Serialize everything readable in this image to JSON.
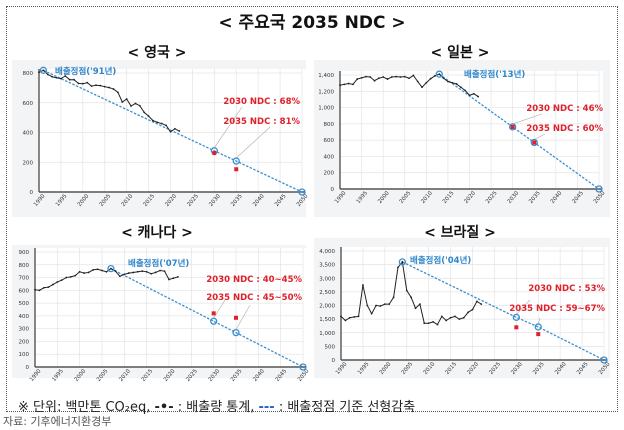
{
  "title": "< 주요국 2035 NDC >",
  "legend": {
    "prefix": "※ 단위: 백만톤 CO₂eq,",
    "stat_marker": "-•-",
    "stat_label": ": 배출량 통계,",
    "linear_marker": "---",
    "linear_label": ": 배출정점 기준 선형감축"
  },
  "source": "자료: 기후에너지환경부",
  "colors": {
    "stats_line": "#222222",
    "linear_line": "#3b8fd0",
    "ndc_marker": "#e0202a",
    "ndc_text": "#e0202a",
    "peak_text": "#2f86c9"
  },
  "chart_data": [
    {
      "type": "line",
      "title": "< 영국 >",
      "x_ticks": [
        1990,
        1995,
        2000,
        2005,
        2010,
        2015,
        2020,
        2025,
        2030,
        2035,
        2040,
        2045,
        2050
      ],
      "y_ticks": [
        "0",
        "200",
        "400",
        "600",
        "800"
      ],
      "ylim": [
        0,
        800
      ],
      "xlim": [
        1990,
        2050
      ],
      "grid": true,
      "emissions": {
        "x": [
          1990,
          1991,
          1992,
          1993,
          1994,
          1995,
          1996,
          1997,
          1998,
          1999,
          2000,
          2001,
          2002,
          2003,
          2004,
          2005,
          2006,
          2007,
          2008,
          2009,
          2010,
          2011,
          2012,
          2013,
          2014,
          2015,
          2016,
          2017,
          2018,
          2019,
          2020,
          2021,
          2022
        ],
        "y": [
          805,
          818,
          790,
          775,
          768,
          762,
          780,
          755,
          755,
          730,
          728,
          735,
          712,
          718,
          715,
          708,
          702,
          692,
          670,
          605,
          625,
          578,
          595,
          580,
          535,
          510,
          480,
          468,
          460,
          448,
          405,
          425,
          410
        ]
      },
      "linear_path": {
        "x": [
          1991,
          2030,
          2035,
          2050
        ],
        "y": [
          818,
          277,
          208,
          0
        ]
      },
      "ndc_points": {
        "x": [
          2030,
          2035
        ],
        "y": [
          262,
          153
        ]
      },
      "peak_label": "배출정점('91년)",
      "ndc_labels": [
        "2030 NDC : 68%",
        "2035 NDC : 81%"
      ]
    },
    {
      "type": "line",
      "title": "< 일본 >",
      "x_ticks": [
        1990,
        1995,
        2000,
        2005,
        2010,
        2015,
        2020,
        2025,
        2030,
        2035,
        2040,
        2045,
        2050
      ],
      "y_ticks": [
        "0",
        "200",
        "400",
        "600",
        "800",
        "1,000",
        "1,200",
        "1,400"
      ],
      "ylim": [
        0,
        1400
      ],
      "xlim": [
        1990,
        2050
      ],
      "grid": true,
      "emissions": {
        "x": [
          1990,
          1991,
          1992,
          1993,
          1994,
          1995,
          1996,
          1997,
          1998,
          1999,
          2000,
          2001,
          2002,
          2003,
          2004,
          2005,
          2006,
          2007,
          2008,
          2009,
          2010,
          2011,
          2012,
          2013,
          2014,
          2015,
          2016,
          2017,
          2018,
          2019,
          2020,
          2021,
          2022
        ],
        "y": [
          1275,
          1285,
          1295,
          1285,
          1350,
          1365,
          1380,
          1375,
          1330,
          1360,
          1375,
          1350,
          1375,
          1380,
          1375,
          1380,
          1360,
          1395,
          1320,
          1250,
          1305,
          1355,
          1390,
          1410,
          1360,
          1320,
          1305,
          1290,
          1250,
          1210,
          1150,
          1170,
          1135
        ]
      },
      "linear_path": {
        "x": [
          2013,
          2030,
          2035,
          2050
        ],
        "y": [
          1410,
          762,
          571,
          0
        ]
      },
      "ndc_points": {
        "x": [
          2030,
          2035
        ],
        "y": [
          762,
          571
        ]
      },
      "peak_label": "배출정점('13년)",
      "ndc_labels": [
        "2030 NDC : 46%",
        "2035 NDC : 60%"
      ]
    },
    {
      "type": "line",
      "title": "< 캐나다 >",
      "x_ticks": [
        1990,
        1995,
        2000,
        2005,
        2010,
        2015,
        2020,
        2025,
        2030,
        2035,
        2040,
        2045,
        2050
      ],
      "y_ticks": [
        "0",
        "100",
        "200",
        "300",
        "400",
        "500",
        "600",
        "700",
        "800",
        "900"
      ],
      "ylim": [
        0,
        900
      ],
      "xlim": [
        1990,
        2050
      ],
      "grid": true,
      "emissions": {
        "x": [
          1990,
          1991,
          1992,
          1993,
          1994,
          1995,
          1996,
          1997,
          1998,
          1999,
          2000,
          2001,
          2002,
          2003,
          2004,
          2005,
          2006,
          2007,
          2008,
          2009,
          2010,
          2011,
          2012,
          2013,
          2014,
          2015,
          2016,
          2017,
          2018,
          2019,
          2020,
          2021,
          2022
        ],
        "y": [
          605,
          600,
          620,
          625,
          645,
          665,
          680,
          700,
          705,
          715,
          745,
          735,
          740,
          760,
          765,
          755,
          745,
          770,
          750,
          710,
          725,
          735,
          740,
          745,
          750,
          745,
          730,
          740,
          755,
          750,
          685,
          695,
          705
        ]
      },
      "linear_path": {
        "x": [
          2007,
          2030,
          2035,
          2050
        ],
        "y": [
          770,
          358,
          269,
          0
        ]
      },
      "ndc_points": {
        "x": [
          2030,
          2035
        ],
        "y": [
          420,
          385
        ]
      },
      "peak_label": "배출정점('07년)",
      "ndc_labels": [
        "2030 NDC : 40~45%",
        "2035 NDC : 45~50%"
      ]
    },
    {
      "type": "line",
      "title": "< 브라질 >",
      "x_ticks": [
        1990,
        1995,
        2000,
        2005,
        2010,
        2015,
        2020,
        2025,
        2030,
        2035,
        2040,
        2045,
        2050
      ],
      "y_ticks": [
        "0",
        "500",
        "1,000",
        "1,500",
        "2,000",
        "2,500",
        "3,000",
        "3,500",
        "4,000"
      ],
      "ylim": [
        0,
        4000
      ],
      "xlim": [
        1990,
        2050
      ],
      "grid": true,
      "emissions": {
        "x": [
          1990,
          1991,
          1992,
          1993,
          1994,
          1995,
          1996,
          1997,
          1998,
          1999,
          2000,
          2001,
          2002,
          2003,
          2004,
          2005,
          2006,
          2007,
          2008,
          2009,
          2010,
          2011,
          2012,
          2013,
          2014,
          2015,
          2016,
          2017,
          2018,
          2019,
          2020,
          2021,
          2022
        ],
        "y": [
          1600,
          1450,
          1550,
          1580,
          1600,
          2750,
          2000,
          1700,
          2000,
          1980,
          2050,
          2050,
          2300,
          3400,
          3600,
          2550,
          2300,
          1900,
          2050,
          1350,
          1350,
          1400,
          1300,
          1600,
          1450,
          1550,
          1600,
          1500,
          1550,
          1750,
          1850,
          2150,
          2050
        ]
      },
      "linear_path": {
        "x": [
          2004,
          2030,
          2035,
          2050
        ],
        "y": [
          3600,
          1565,
          1213,
          0
        ]
      },
      "ndc_points": {
        "x": [
          2030,
          2035
        ],
        "y": [
          1200,
          950
        ]
      },
      "peak_label": "배출정점('04년)",
      "ndc_labels": [
        "2030 NDC : 53%",
        "2035 NDC : 59~67%"
      ]
    }
  ]
}
